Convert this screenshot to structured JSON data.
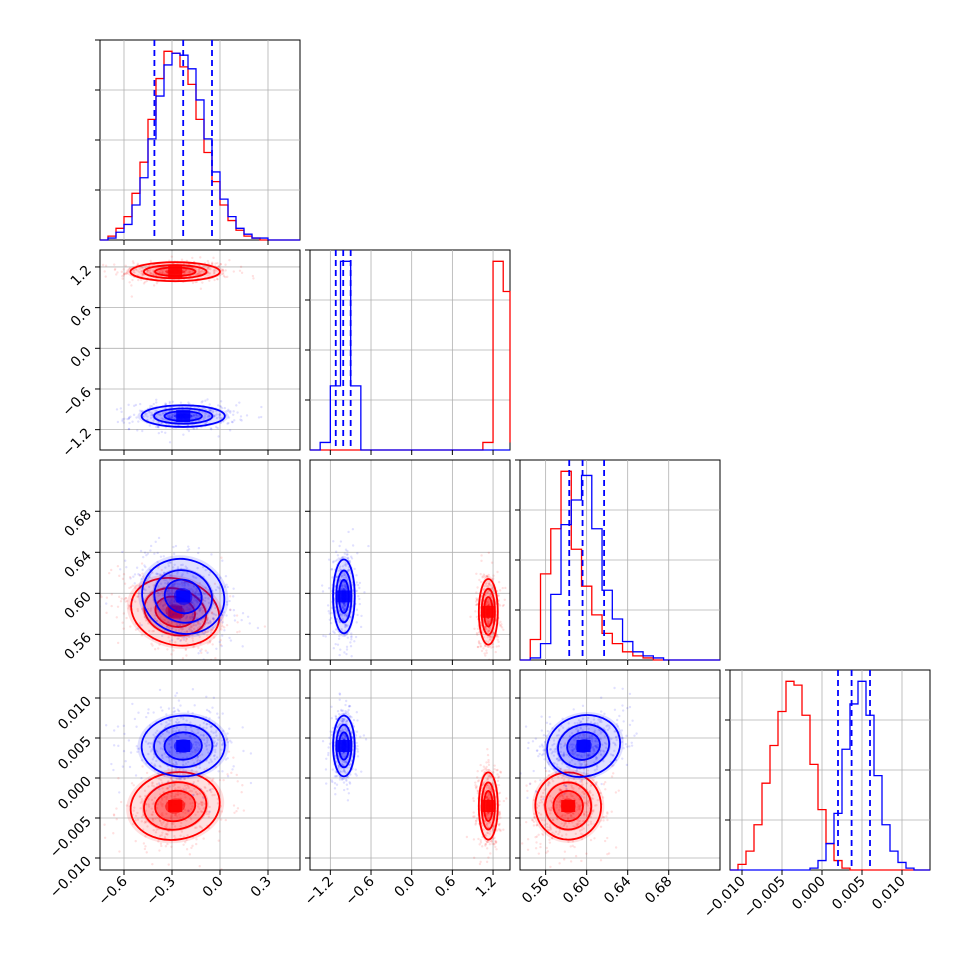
{
  "chart_data": {
    "type": "corner",
    "grid": true,
    "colors": {
      "series_a": "#0000ff",
      "series_b": "#ff0000"
    },
    "series_names": [
      "series_a",
      "series_b"
    ],
    "parameters": [
      {
        "id": "p1",
        "range": [
          -0.75,
          0.5
        ],
        "ticks": [
          -0.6,
          -0.3,
          0.0,
          0.3
        ],
        "tick_labels": [
          "−0.6",
          "−0.3",
          "0.0",
          "0.3"
        ]
      },
      {
        "id": "p2",
        "range": [
          -1.5,
          1.45
        ],
        "ticks": [
          -1.2,
          -0.6,
          0.0,
          0.6,
          1.2
        ],
        "tick_labels": [
          "−1.2",
          "−0.6",
          "0.0",
          "0.6",
          "1.2"
        ]
      },
      {
        "id": "p3",
        "range": [
          0.535,
          0.73
        ],
        "ticks": [
          0.56,
          0.6,
          0.64,
          0.68
        ],
        "tick_labels": [
          "0.56",
          "0.60",
          "0.64",
          "0.68"
        ]
      },
      {
        "id": "p4",
        "range": [
          -0.0115,
          0.0135
        ],
        "ticks": [
          -0.01,
          -0.005,
          0.0,
          0.005,
          0.01
        ],
        "tick_labels": [
          "−0.010",
          "−0.005",
          "0.000",
          "0.005",
          "0.010"
        ]
      }
    ],
    "quantile_lines": {
      "series_a": [
        [
          -0.41,
          -0.23,
          -0.05
        ],
        [
          -1.12,
          -1.01,
          -0.9
        ],
        [
          0.583,
          0.596,
          0.617
        ],
        [
          0.002,
          0.0037,
          0.006
        ]
      ]
    },
    "histograms": [
      {
        "bins": [
          -0.75,
          -0.7,
          -0.65,
          -0.6,
          -0.55,
          -0.5,
          -0.45,
          -0.4,
          -0.35,
          -0.3,
          -0.25,
          -0.2,
          -0.15,
          -0.1,
          -0.05,
          0.0,
          0.05,
          0.1,
          0.15,
          0.2,
          0.25,
          0.3,
          0.35,
          0.4,
          0.45,
          0.5
        ],
        "series_a": [
          0,
          1,
          4,
          8,
          18,
          32,
          52,
          74,
          90,
          96,
          95,
          88,
          72,
          52,
          35,
          21,
          12,
          6,
          3,
          1,
          1,
          0,
          0,
          0,
          0
        ],
        "series_b": [
          0,
          2,
          6,
          12,
          24,
          40,
          62,
          83,
          97,
          96,
          89,
          80,
          62,
          45,
          30,
          18,
          10,
          5,
          2,
          1,
          0,
          0,
          0,
          0,
          0
        ]
      },
      {
        "bins": [
          -1.5,
          -1.35,
          -1.2,
          -1.05,
          -0.9,
          -0.75,
          -0.6,
          -0.45,
          -0.3,
          -0.15,
          0.0,
          0.15,
          0.3,
          0.45,
          0.6,
          0.75,
          0.9,
          1.05,
          1.2,
          1.35,
          1.45
        ],
        "series_a": [
          0,
          4,
          34,
          100,
          34,
          0,
          0,
          0,
          0,
          0,
          0,
          0,
          0,
          0,
          0,
          0,
          0,
          0,
          0,
          0
        ],
        "series_b": [
          0,
          0,
          0,
          0,
          0,
          0,
          0,
          0,
          0,
          0,
          0,
          0,
          0,
          0,
          0,
          0,
          0,
          4,
          100,
          84,
          4
        ]
      },
      {
        "bins": [
          0.535,
          0.545,
          0.555,
          0.565,
          0.575,
          0.585,
          0.595,
          0.605,
          0.615,
          0.625,
          0.635,
          0.645,
          0.655,
          0.665,
          0.675,
          0.685,
          0.695,
          0.705,
          0.715,
          0.725,
          0.73
        ],
        "series_a": [
          0,
          1,
          8,
          32,
          66,
          78,
          90,
          64,
          34,
          20,
          9,
          4,
          2,
          1,
          0,
          0,
          0,
          0,
          0,
          0
        ],
        "series_b": [
          0,
          10,
          42,
          64,
          92,
          54,
          36,
          22,
          13,
          8,
          4,
          2,
          1,
          0,
          0,
          0,
          0,
          0,
          0,
          0
        ]
      },
      {
        "bins": [
          -0.0115,
          -0.0105,
          -0.0095,
          -0.0085,
          -0.0075,
          -0.0065,
          -0.0055,
          -0.0045,
          -0.0035,
          -0.0025,
          -0.0015,
          -0.0005,
          0.0005,
          0.0015,
          0.0025,
          0.0035,
          0.0045,
          0.0055,
          0.0065,
          0.0075,
          0.0085,
          0.0095,
          0.0105,
          0.0115,
          0.0125,
          0.0135
        ],
        "series_a": [
          0,
          0,
          0,
          0,
          0,
          0,
          0,
          0,
          0,
          0,
          1,
          5,
          14,
          30,
          64,
          88,
          100,
          82,
          50,
          24,
          10,
          4,
          1,
          0,
          0
        ],
        "series_b": [
          0,
          3,
          10,
          24,
          46,
          66,
          84,
          100,
          98,
          82,
          56,
          32,
          14,
          5,
          1,
          0,
          0,
          0,
          0,
          0,
          0,
          0,
          0,
          0,
          0
        ]
      }
    ],
    "blobs": {
      "series_a": [
        {
          "mean": [
            -0.23,
            -1.0,
            0.597,
            0.004
          ],
          "sd": [
            0.13,
            0.08,
            0.018,
            0.0019
          ]
        }
      ],
      "series_b": [
        {
          "mean": [
            -0.28,
            1.13,
            0.582,
            -0.0035
          ],
          "sd": [
            0.14,
            0.07,
            0.016,
            0.0021
          ]
        }
      ]
    },
    "correlations": {
      "series_a": {
        "0-2": -0.45,
        "0-3": 0.05,
        "1-2": 0.0,
        "1-3": 0.0,
        "2-3": 0.35,
        "0-1": 0.0
      },
      "series_b": {
        "0-2": -0.35,
        "0-3": 0.2,
        "1-2": 0.0,
        "1-3": 0.0,
        "2-3": 0.2,
        "0-1": 0.0
      }
    }
  }
}
